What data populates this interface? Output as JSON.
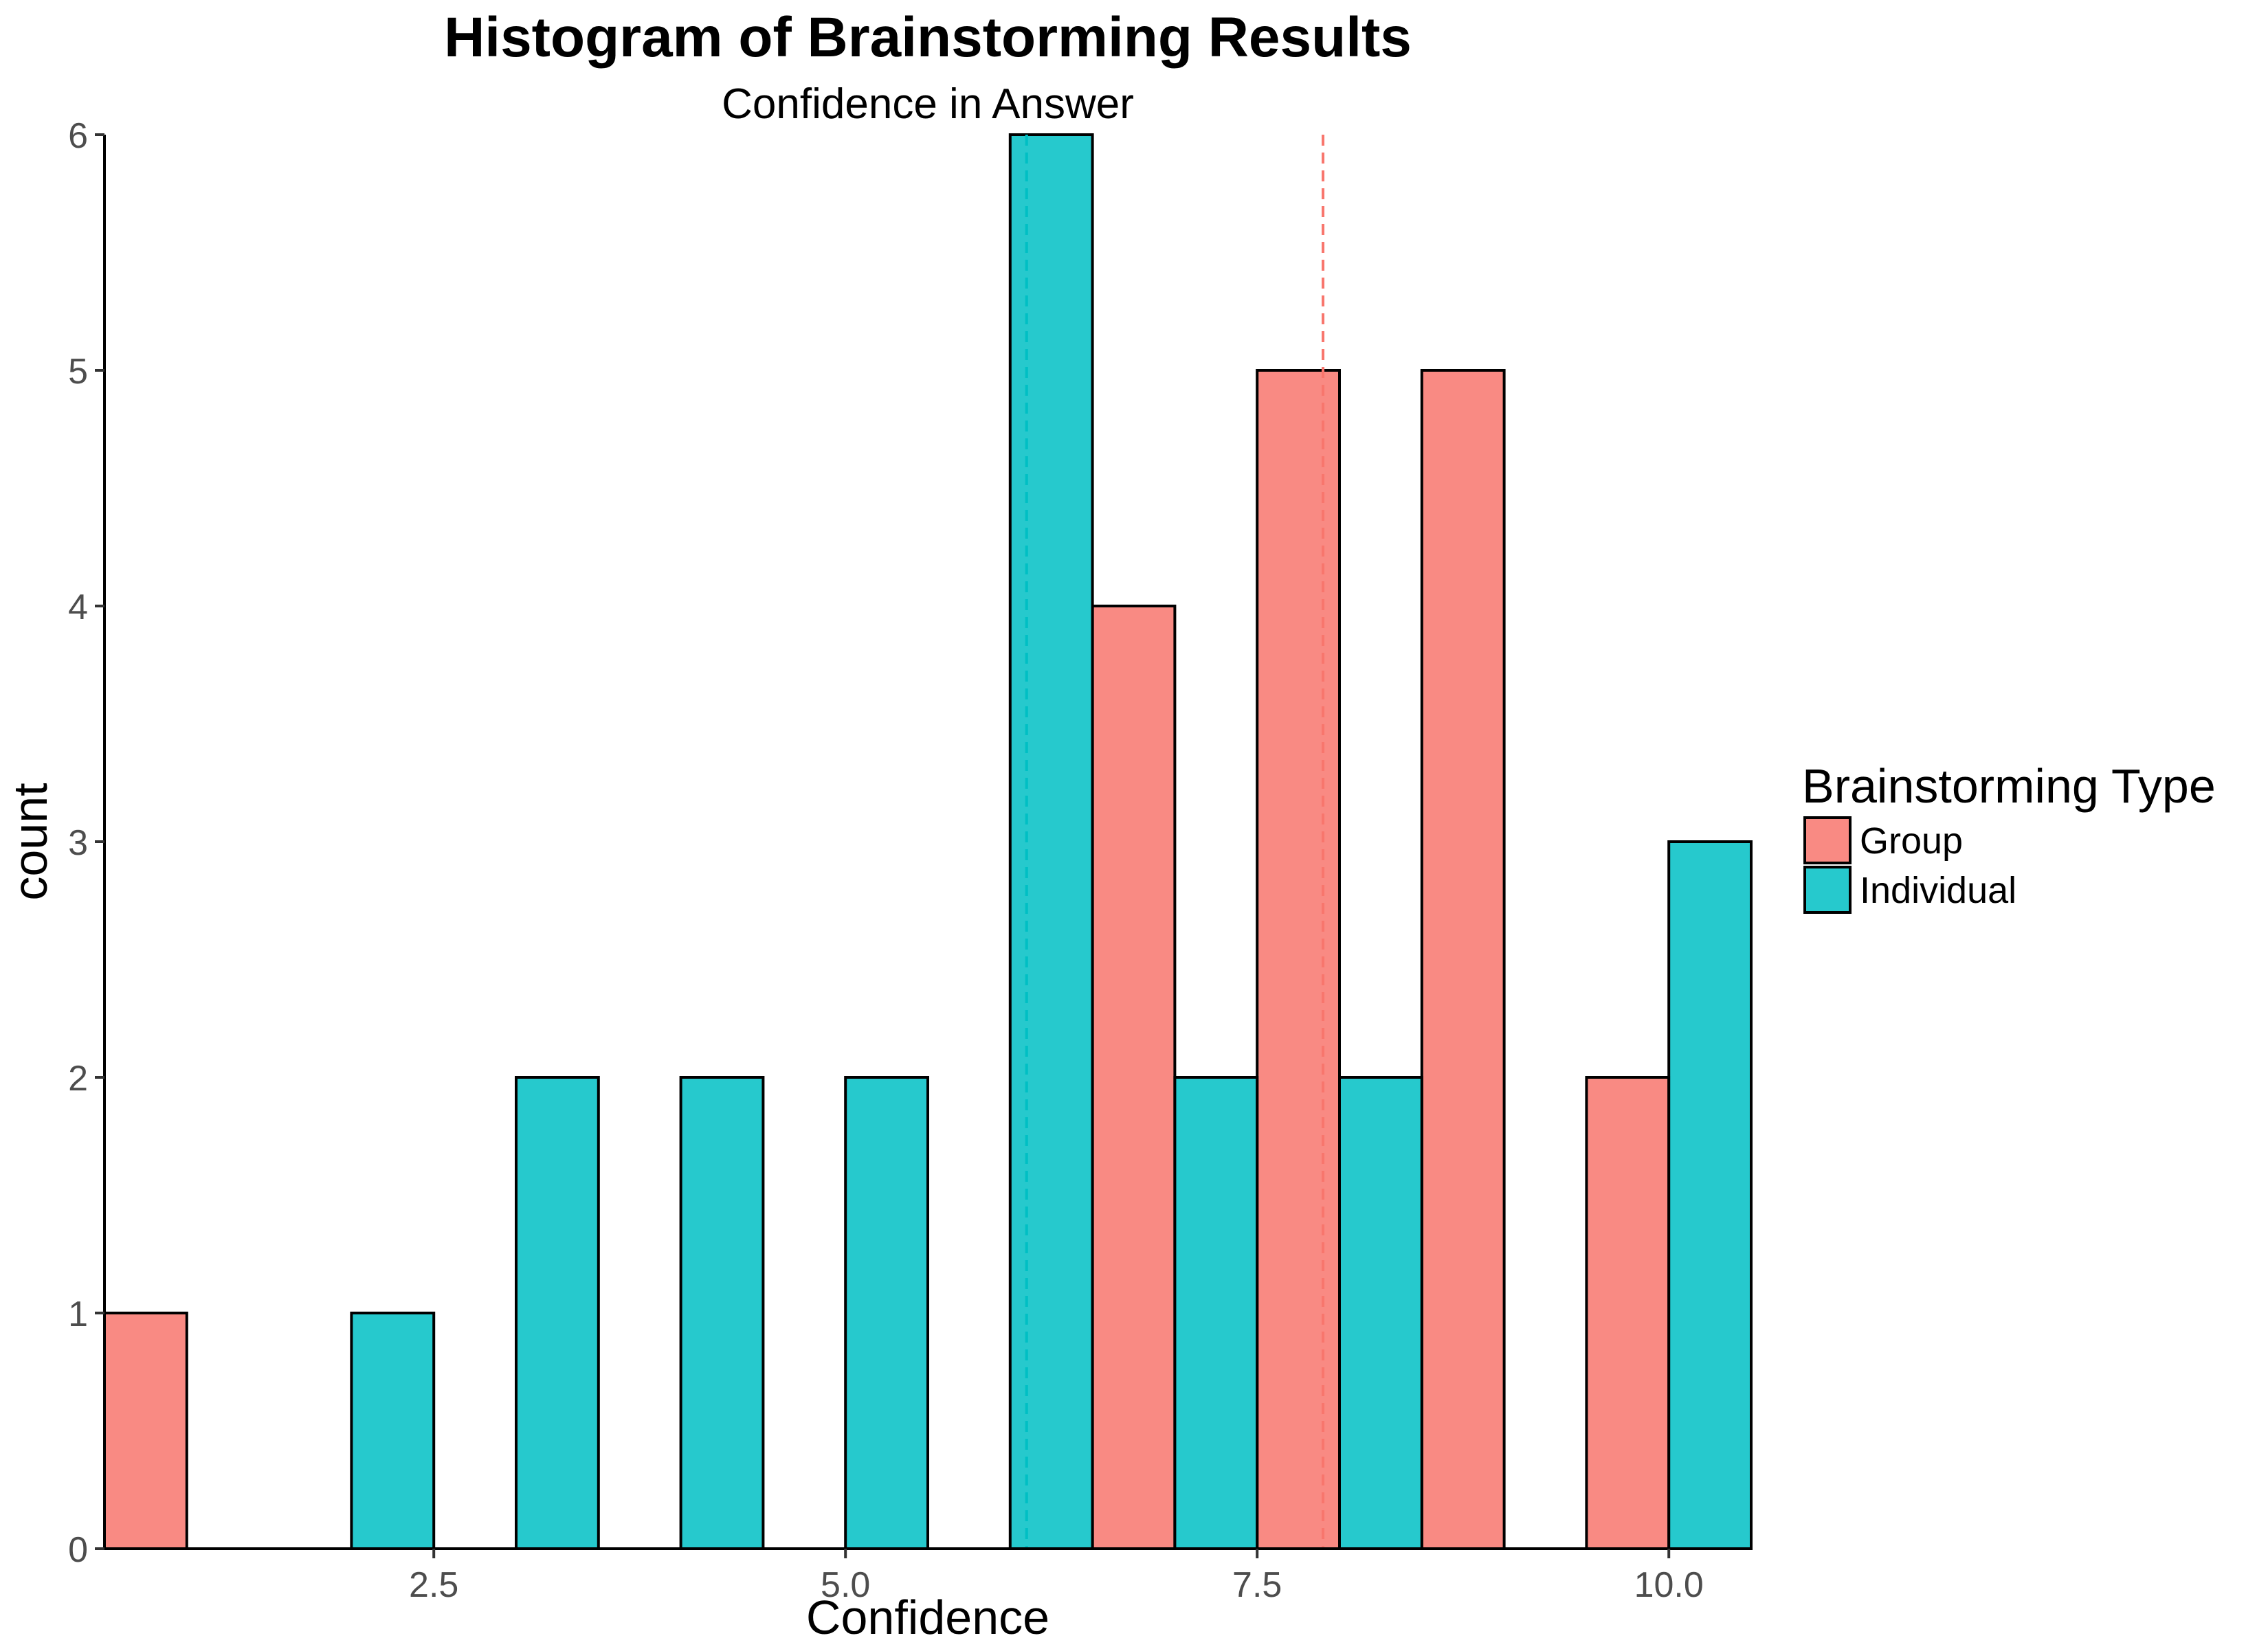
{
  "chart_data": {
    "type": "bar",
    "title": "Histogram of Brainstorming Results",
    "subtitle": "Confidence in Answer",
    "xlabel": "Confidence",
    "ylabel": "count",
    "xlim": [
      0.5,
      10.5
    ],
    "ylim": [
      0,
      6
    ],
    "x_ticks": [
      2.5,
      5.0,
      7.5,
      10.0
    ],
    "x_tick_labels": [
      "2.5",
      "5.0",
      "7.5",
      "10.0"
    ],
    "y_ticks": [
      0,
      1,
      2,
      3,
      4,
      5,
      6
    ],
    "y_tick_labels": [
      "0",
      "1",
      "2",
      "3",
      "4",
      "5",
      "6"
    ],
    "grid": false,
    "bin_width": 1,
    "bar_position": "dodge",
    "bins": [
      1,
      2,
      3,
      4,
      5,
      6,
      7,
      8,
      9,
      10
    ],
    "series": [
      {
        "name": "Group",
        "color": "#F8766D",
        "values": [
          1,
          0,
          0,
          0,
          0,
          0,
          4,
          5,
          5,
          2
        ],
        "mean": 7.9
      },
      {
        "name": "Individual",
        "color": "#00BFC4",
        "values": [
          0,
          1,
          2,
          2,
          2,
          6,
          2,
          2,
          0,
          3
        ],
        "mean": 6.1
      }
    ],
    "mean_lines": "dashed vertical lines at each series mean",
    "legend": {
      "title": "Brainstorming Type",
      "placement": "right"
    }
  }
}
